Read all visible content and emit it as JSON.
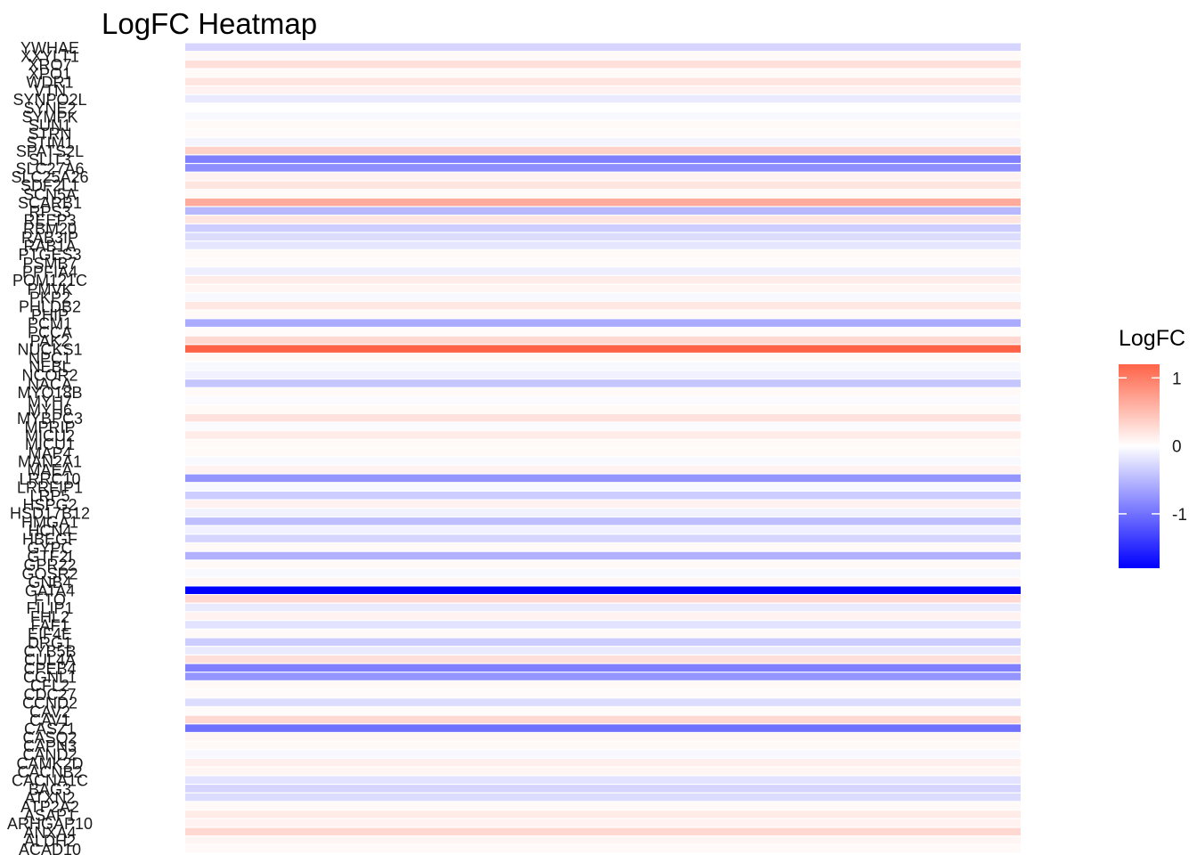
{
  "chart_data": {
    "type": "heatmap",
    "title": "LogFC Heatmap",
    "xlabel": "",
    "ylabel": "",
    "grid": false,
    "color_scale": {
      "low": "#0000FF",
      "mid": "#FFFFFF",
      "high": "#FF6347",
      "limits": [
        -1.8,
        1.2
      ]
    },
    "legend": {
      "title": "LogFC",
      "position": "right",
      "ticks": [
        {
          "value": 1,
          "label": "1"
        },
        {
          "value": 0,
          "label": "0"
        },
        {
          "value": -1,
          "label": "-1"
        }
      ]
    },
    "rows": [
      {
        "label": "YWHAE",
        "value": -0.3
      },
      {
        "label": "XXYLT1",
        "value": 0.05
      },
      {
        "label": "XRO7",
        "value": 0.25
      },
      {
        "label": "XPO1",
        "value": 0.05
      },
      {
        "label": "WDR1",
        "value": 0.2
      },
      {
        "label": "VTN",
        "value": 0.1
      },
      {
        "label": "SYNPO2L",
        "value": -0.15
      },
      {
        "label": "SYNE2",
        "value": 0.0
      },
      {
        "label": "SYMPK",
        "value": -0.05
      },
      {
        "label": "SUN1",
        "value": 0.05
      },
      {
        "label": "STRN",
        "value": 0.03
      },
      {
        "label": "STIM1",
        "value": -0.08
      },
      {
        "label": "SPATS2L",
        "value": 0.35
      },
      {
        "label": "SLIT3",
        "value": -0.9
      },
      {
        "label": "SLC27A6",
        "value": -0.8
      },
      {
        "label": "SLC25A26",
        "value": 0.1
      },
      {
        "label": "SDF2L1",
        "value": 0.2
      },
      {
        "label": "SCN5A",
        "value": 0.05
      },
      {
        "label": "SCARB1",
        "value": 0.65
      },
      {
        "label": "RPS3",
        "value": -0.5
      },
      {
        "label": "REEP3",
        "value": 0.2
      },
      {
        "label": "RBM20",
        "value": -0.35
      },
      {
        "label": "RAB3IP",
        "value": -0.25
      },
      {
        "label": "RAB1A",
        "value": -0.18
      },
      {
        "label": "PTGES3",
        "value": 0.05
      },
      {
        "label": "PSMB7",
        "value": 0.03
      },
      {
        "label": "PPFIA4",
        "value": -0.12
      },
      {
        "label": "POM121C",
        "value": 0.15
      },
      {
        "label": "PMVK",
        "value": 0.08
      },
      {
        "label": "PKP2",
        "value": -0.05
      },
      {
        "label": "PHLDB2",
        "value": 0.18
      },
      {
        "label": "PHIP",
        "value": 0.05
      },
      {
        "label": "PCM1",
        "value": -0.6
      },
      {
        "label": "PCCA",
        "value": 0.03
      },
      {
        "label": "PAK2",
        "value": 0.3
      },
      {
        "label": "NUCKS1",
        "value": 1.2
      },
      {
        "label": "NPC1",
        "value": 0.05
      },
      {
        "label": "NEBL",
        "value": -0.05
      },
      {
        "label": "NCOR2",
        "value": -0.1
      },
      {
        "label": "NACA",
        "value": -0.4
      },
      {
        "label": "MYO18B",
        "value": 0.05
      },
      {
        "label": "MYH7",
        "value": -0.03
      },
      {
        "label": "MYH6",
        "value": 0.05
      },
      {
        "label": "MYBPC3",
        "value": 0.22
      },
      {
        "label": "MPRIP",
        "value": -0.03
      },
      {
        "label": "MICU2",
        "value": 0.15
      },
      {
        "label": "MICU1",
        "value": 0.05
      },
      {
        "label": "MAP4",
        "value": 0.05
      },
      {
        "label": "MAN2A1",
        "value": -0.05
      },
      {
        "label": "MAEA",
        "value": 0.1
      },
      {
        "label": "LRRC10",
        "value": -0.75
      },
      {
        "label": "LRRFIP1",
        "value": -0.05
      },
      {
        "label": "LRP5",
        "value": -0.35
      },
      {
        "label": "HSPG2",
        "value": 0.1
      },
      {
        "label": "HSD17B12",
        "value": -0.1
      },
      {
        "label": "HMGA1",
        "value": -0.45
      },
      {
        "label": "HCN4",
        "value": -0.1
      },
      {
        "label": "HBEGF",
        "value": -0.3
      },
      {
        "label": "GYPC",
        "value": 0.05
      },
      {
        "label": "GTF2I",
        "value": -0.55
      },
      {
        "label": "GPR22",
        "value": 0.05
      },
      {
        "label": "GOSR2",
        "value": -0.05
      },
      {
        "label": "GNB4",
        "value": 0.08
      },
      {
        "label": "GATA4",
        "value": -1.8
      },
      {
        "label": "FTO",
        "value": 0.3
      },
      {
        "label": "FILIP1",
        "value": -0.15
      },
      {
        "label": "FHL2",
        "value": 0.1
      },
      {
        "label": "FAF1",
        "value": -0.2
      },
      {
        "label": "EIF4E",
        "value": 0.05
      },
      {
        "label": "DRG1",
        "value": -0.35
      },
      {
        "label": "CYB5B",
        "value": -0.15
      },
      {
        "label": "CUL4A",
        "value": 0.25
      },
      {
        "label": "CPEB4",
        "value": -0.9
      },
      {
        "label": "CGNL1",
        "value": -0.75
      },
      {
        "label": "CFL2",
        "value": 0.05
      },
      {
        "label": "CDC27",
        "value": 0.03
      },
      {
        "label": "CCND2",
        "value": -0.25
      },
      {
        "label": "CAV2",
        "value": 0.03
      },
      {
        "label": "CAV1",
        "value": 0.3
      },
      {
        "label": "CASZ1",
        "value": -1.0
      },
      {
        "label": "CASQ2",
        "value": 0.08
      },
      {
        "label": "CAPN3",
        "value": 0.05
      },
      {
        "label": "CAND2",
        "value": -0.05
      },
      {
        "label": "CAMK2D",
        "value": 0.12
      },
      {
        "label": "CACNB2",
        "value": 0.08
      },
      {
        "label": "CACNA1C",
        "value": -0.2
      },
      {
        "label": "BAG3",
        "value": -0.3
      },
      {
        "label": "ATXN2",
        "value": -0.25
      },
      {
        "label": "ATP2A2",
        "value": 0.05
      },
      {
        "label": "ASAP1",
        "value": 0.15
      },
      {
        "label": "ARHGAP10",
        "value": 0.1
      },
      {
        "label": "ANXA4",
        "value": 0.3
      },
      {
        "label": "ALDH2",
        "value": 0.08
      },
      {
        "label": "ACAD10",
        "value": 0.05
      }
    ]
  }
}
